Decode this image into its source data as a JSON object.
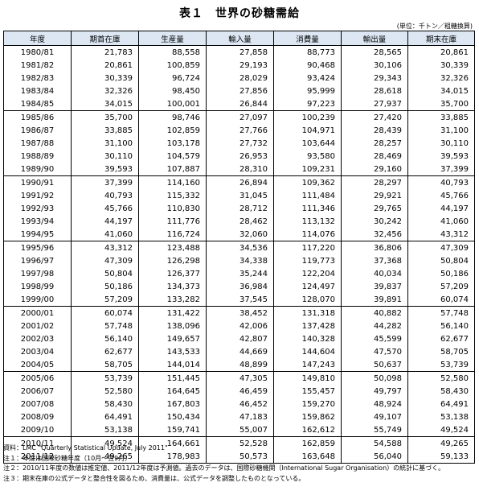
{
  "title": "表１　世界の砂糖需給",
  "unit": "(単位：千トン／粗糖換算)",
  "columns": [
    "年度",
    "期首在庫",
    "生産量",
    "輸入量",
    "消費量",
    "輸出量",
    "期末在庫"
  ],
  "rows": [
    [
      "1980/81",
      "21,783",
      "88,558",
      "27,858",
      "88,773",
      "28,565",
      "20,861"
    ],
    [
      "1981/82",
      "20,861",
      "100,859",
      "29,193",
      "90,468",
      "30,106",
      "30,339"
    ],
    [
      "1982/83",
      "30,339",
      "96,724",
      "28,029",
      "93,424",
      "29,343",
      "32,326"
    ],
    [
      "1983/84",
      "32,326",
      "98,450",
      "27,856",
      "95,999",
      "28,618",
      "34,015"
    ],
    [
      "1984/85",
      "34,015",
      "100,001",
      "26,844",
      "97,223",
      "27,937",
      "35,700"
    ],
    [
      "1985/86",
      "35,700",
      "98,746",
      "27,097",
      "100,239",
      "27,420",
      "33,885"
    ],
    [
      "1986/87",
      "33,885",
      "102,859",
      "27,766",
      "104,971",
      "28,439",
      "31,100"
    ],
    [
      "1987/88",
      "31,100",
      "103,178",
      "27,732",
      "103,644",
      "28,257",
      "30,110"
    ],
    [
      "1988/89",
      "30,110",
      "104,579",
      "26,953",
      "93,580",
      "28,469",
      "39,593"
    ],
    [
      "1989/90",
      "39,593",
      "107,887",
      "28,310",
      "109,231",
      "29,160",
      "37,399"
    ],
    [
      "1990/91",
      "37,399",
      "114,160",
      "26,894",
      "109,362",
      "28,297",
      "40,793"
    ],
    [
      "1991/92",
      "40,793",
      "115,332",
      "31,045",
      "111,484",
      "29,921",
      "45,766"
    ],
    [
      "1992/93",
      "45,766",
      "110,830",
      "28,712",
      "111,346",
      "29,765",
      "44,197"
    ],
    [
      "1993/94",
      "44,197",
      "111,776",
      "28,462",
      "113,132",
      "30,242",
      "41,060"
    ],
    [
      "1994/95",
      "41,060",
      "116,724",
      "32,060",
      "114,076",
      "32,456",
      "43,312"
    ],
    [
      "1995/96",
      "43,312",
      "123,488",
      "34,536",
      "117,220",
      "36,806",
      "47,309"
    ],
    [
      "1996/97",
      "47,309",
      "126,298",
      "34,338",
      "119,773",
      "37,368",
      "50,804"
    ],
    [
      "1997/98",
      "50,804",
      "126,377",
      "35,244",
      "122,204",
      "40,034",
      "50,186"
    ],
    [
      "1998/99",
      "50,186",
      "134,373",
      "36,984",
      "124,497",
      "39,837",
      "57,209"
    ],
    [
      "1999/00",
      "57,209",
      "133,282",
      "37,545",
      "128,070",
      "39,891",
      "60,074"
    ],
    [
      "2000/01",
      "60,074",
      "131,422",
      "38,452",
      "131,318",
      "40,882",
      "57,748"
    ],
    [
      "2001/02",
      "57,748",
      "138,096",
      "42,006",
      "137,428",
      "44,282",
      "56,140"
    ],
    [
      "2002/03",
      "56,140",
      "149,657",
      "42,807",
      "140,328",
      "45,599",
      "62,677"
    ],
    [
      "2003/04",
      "62,677",
      "143,533",
      "44,669",
      "144,604",
      "47,570",
      "58,705"
    ],
    [
      "2004/05",
      "58,705",
      "144,014",
      "48,899",
      "147,243",
      "50,637",
      "53,739"
    ],
    [
      "2005/06",
      "53,739",
      "151,445",
      "47,305",
      "149,810",
      "50,098",
      "52,580"
    ],
    [
      "2006/07",
      "52,580",
      "164,645",
      "46,459",
      "155,457",
      "49,797",
      "58,430"
    ],
    [
      "2007/08",
      "58,430",
      "167,803",
      "46,452",
      "159,270",
      "48,924",
      "64,491"
    ],
    [
      "2008/09",
      "64,491",
      "150,434",
      "47,183",
      "159,862",
      "49,107",
      "53,138"
    ],
    [
      "2009/10",
      "53,138",
      "159,741",
      "55,007",
      "162,612",
      "55,749",
      "49,524"
    ],
    [
      "2010/11",
      "49,524",
      "164,661",
      "52,528",
      "162,859",
      "54,588",
      "49,265"
    ],
    [
      "2011/12",
      "49,265",
      "178,983",
      "50,573",
      "163,648",
      "56,040",
      "59,133"
    ]
  ],
  "notes": [
    "資料：LMC \"Quarterly Statistical Update, July 2011\"",
    "注１：年度は国際砂糖年度（10月〜翌9月）",
    "注２：2010/11年度の数値は推定値、2011/12年度は予測値。過去のデータは、国際砂糖機関（International Sugar Organisation）の統計に基づく。",
    "注３：期末在庫の公式データと整合性を図るため、消費量は、公式データを調整したものとなっている。"
  ]
}
